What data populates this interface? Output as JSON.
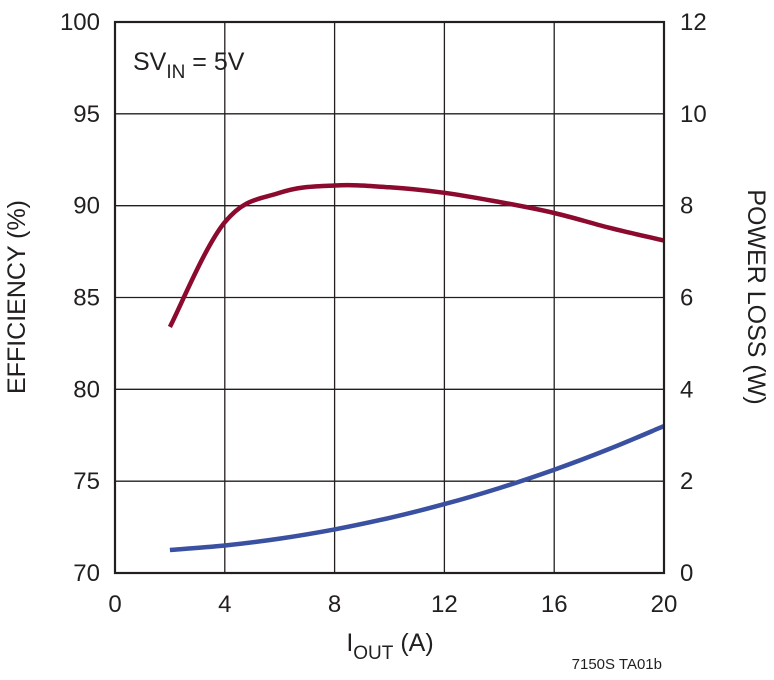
{
  "chart_data": {
    "type": "line",
    "annotation": {
      "main": "SV",
      "sub": "IN",
      "rest": " = 5V"
    },
    "xlabel": {
      "main": "I",
      "sub": "OUT",
      "rest": " (A)"
    },
    "ylabel_left": "EFFICIENCY (%)",
    "ylabel_right": "POWER LOSS (W)",
    "figure_id": "7150S TA01b",
    "xlim": [
      0,
      20
    ],
    "ylim_left": [
      70,
      100
    ],
    "ylim_right": [
      0,
      12
    ],
    "x_ticks": [
      "0",
      "4",
      "8",
      "12",
      "16",
      "20"
    ],
    "y_left_ticks": [
      "70",
      "75",
      "80",
      "85",
      "90",
      "95",
      "100"
    ],
    "y_right_ticks": [
      "0",
      "2",
      "4",
      "6",
      "8",
      "10",
      "12"
    ],
    "grid": true,
    "series": [
      {
        "axis": "left",
        "color": "#8b0a2e",
        "x": [
          2,
          4,
          6,
          8,
          10,
          12,
          14,
          16,
          18,
          20
        ],
        "y": [
          83.4,
          89.1,
          90.7,
          91.1,
          91.0,
          90.7,
          90.2,
          89.6,
          88.8,
          88.1
        ]
      },
      {
        "axis": "right",
        "color": "#3a50a0",
        "x": [
          2,
          4,
          6,
          8,
          10,
          12,
          14,
          16,
          18,
          20
        ],
        "y": [
          0.5,
          0.6,
          0.75,
          0.95,
          1.2,
          1.5,
          1.85,
          2.25,
          2.7,
          3.2
        ]
      }
    ]
  }
}
